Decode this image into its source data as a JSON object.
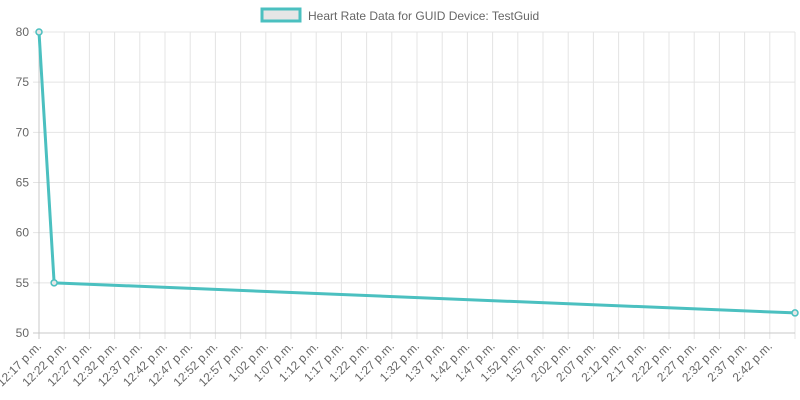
{
  "chart_data": {
    "type": "line",
    "legend_position": "top",
    "grid": true,
    "series": [
      {
        "name": "Heart Rate Data for GUID Device: TestGuid",
        "color": "#4bc0c0",
        "fill": "#e6e6e6",
        "points": [
          {
            "x": "12:17 p.m.",
            "y": 80
          },
          {
            "x": "12:20 p.m.",
            "y": 55
          },
          {
            "x": "2:47 p.m.",
            "y": 52
          }
        ]
      }
    ],
    "x_ticks": [
      "12:17 p.m.",
      "12:22 p.m.",
      "12:27 p.m.",
      "12:32 p.m.",
      "12:37 p.m.",
      "12:42 p.m.",
      "12:47 p.m.",
      "12:52 p.m.",
      "12:57 p.m.",
      "1:02 p.m.",
      "1:07 p.m.",
      "1:12 p.m.",
      "1:17 p.m.",
      "1:22 p.m.",
      "1:27 p.m.",
      "1:32 p.m.",
      "1:37 p.m.",
      "1:42 p.m.",
      "1:47 p.m.",
      "1:52 p.m.",
      "1:57 p.m.",
      "2:02 p.m.",
      "2:07 p.m.",
      "2:12 p.m.",
      "2:17 p.m.",
      "2:22 p.m.",
      "2:27 p.m.",
      "2:32 p.m.",
      "2:37 p.m.",
      "2:42 p.m."
    ],
    "x_range": [
      "12:17 p.m.",
      "2:47 p.m."
    ],
    "y_ticks": [
      80,
      75,
      70,
      65,
      60,
      55,
      50
    ],
    "ylim": [
      50,
      80
    ]
  }
}
